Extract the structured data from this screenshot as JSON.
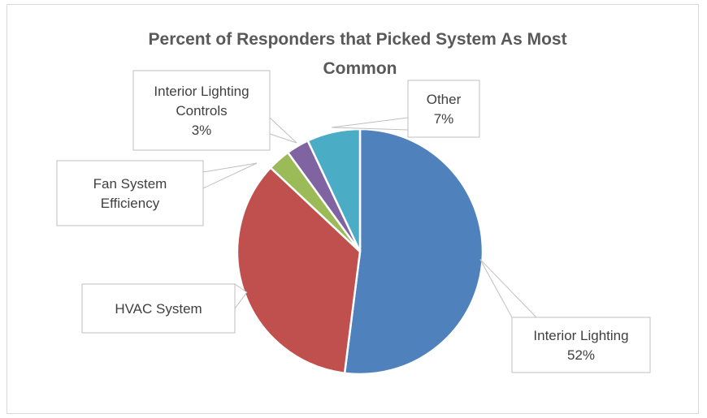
{
  "chart_data": {
    "type": "pie",
    "title": "Percent of Responders that Picked System As Most Common",
    "start_angle_deg": 0,
    "direction": "clockwise",
    "slices": [
      {
        "label": "Interior Lighting",
        "value": 52,
        "data_label": "52%",
        "color": "#4f81bd"
      },
      {
        "label": "HVAC System",
        "value": 35,
        "data_label": "",
        "color": "#c0504d"
      },
      {
        "label": "Fan System Efficiency",
        "value": 3,
        "data_label": "",
        "color": "#9bbb59"
      },
      {
        "label": "Interior Lighting Controls",
        "value": 3,
        "data_label": "3%",
        "color": "#8064a2"
      },
      {
        "label": "Other",
        "value": 7,
        "data_label": "7%",
        "color": "#4bacc6"
      }
    ]
  }
}
